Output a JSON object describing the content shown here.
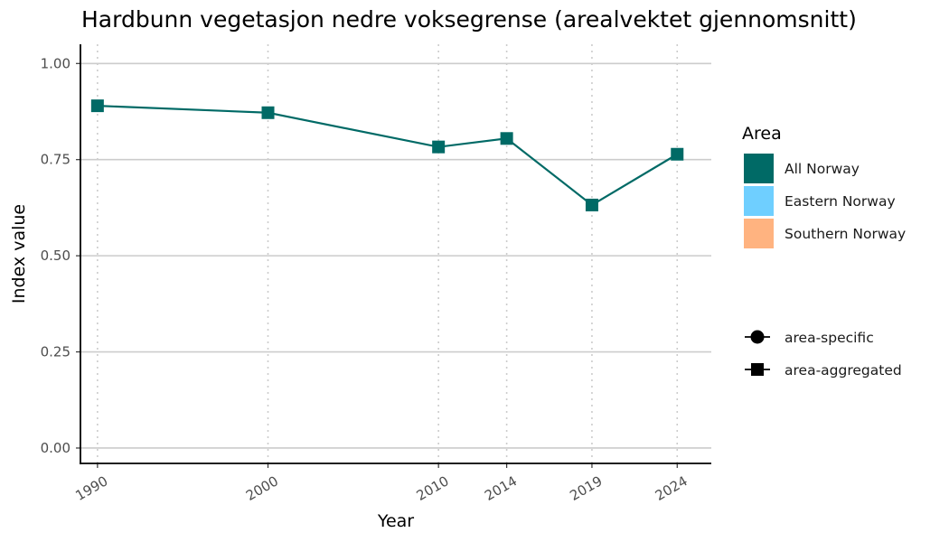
{
  "chart_data": {
    "type": "line",
    "title": "Hardbunn vegetasjon nedre voksegrense (arealvektet gjennomsnitt)",
    "xlabel": "Year",
    "ylabel": "Index value",
    "x": [
      1990,
      2000,
      2010,
      2014,
      2019,
      2024
    ],
    "x_tick_labels": [
      "1990",
      "2000",
      "2010",
      "2014",
      "2019",
      "2024"
    ],
    "xlim": [
      1989,
      2026
    ],
    "ylim": [
      -0.04,
      1.05
    ],
    "y_ticks": [
      0,
      0.25,
      0.5,
      0.75,
      1.0
    ],
    "y_tick_labels": [
      "0.00",
      "0.25",
      "0.50",
      "0.75",
      "1.00"
    ],
    "grid": {
      "horizontal": "major solid",
      "vertical": "dotted at data years"
    },
    "series": [
      {
        "name": "All Norway",
        "marker": "square",
        "color": "#006a66",
        "values": [
          0.89,
          0.872,
          0.783,
          0.805,
          0.632,
          0.764
        ]
      }
    ],
    "legend": {
      "placement": "right",
      "area": {
        "title": "Area",
        "items": [
          {
            "label": "All Norway",
            "color": "#006a66"
          },
          {
            "label": "Eastern Norway",
            "color": "#6fcfff"
          },
          {
            "label": "Southern Norway",
            "color": "#ffb380"
          }
        ]
      },
      "shape": {
        "items": [
          {
            "label": "area-specific",
            "marker": "circle"
          },
          {
            "label": "area-aggregated",
            "marker": "square"
          }
        ]
      }
    }
  }
}
